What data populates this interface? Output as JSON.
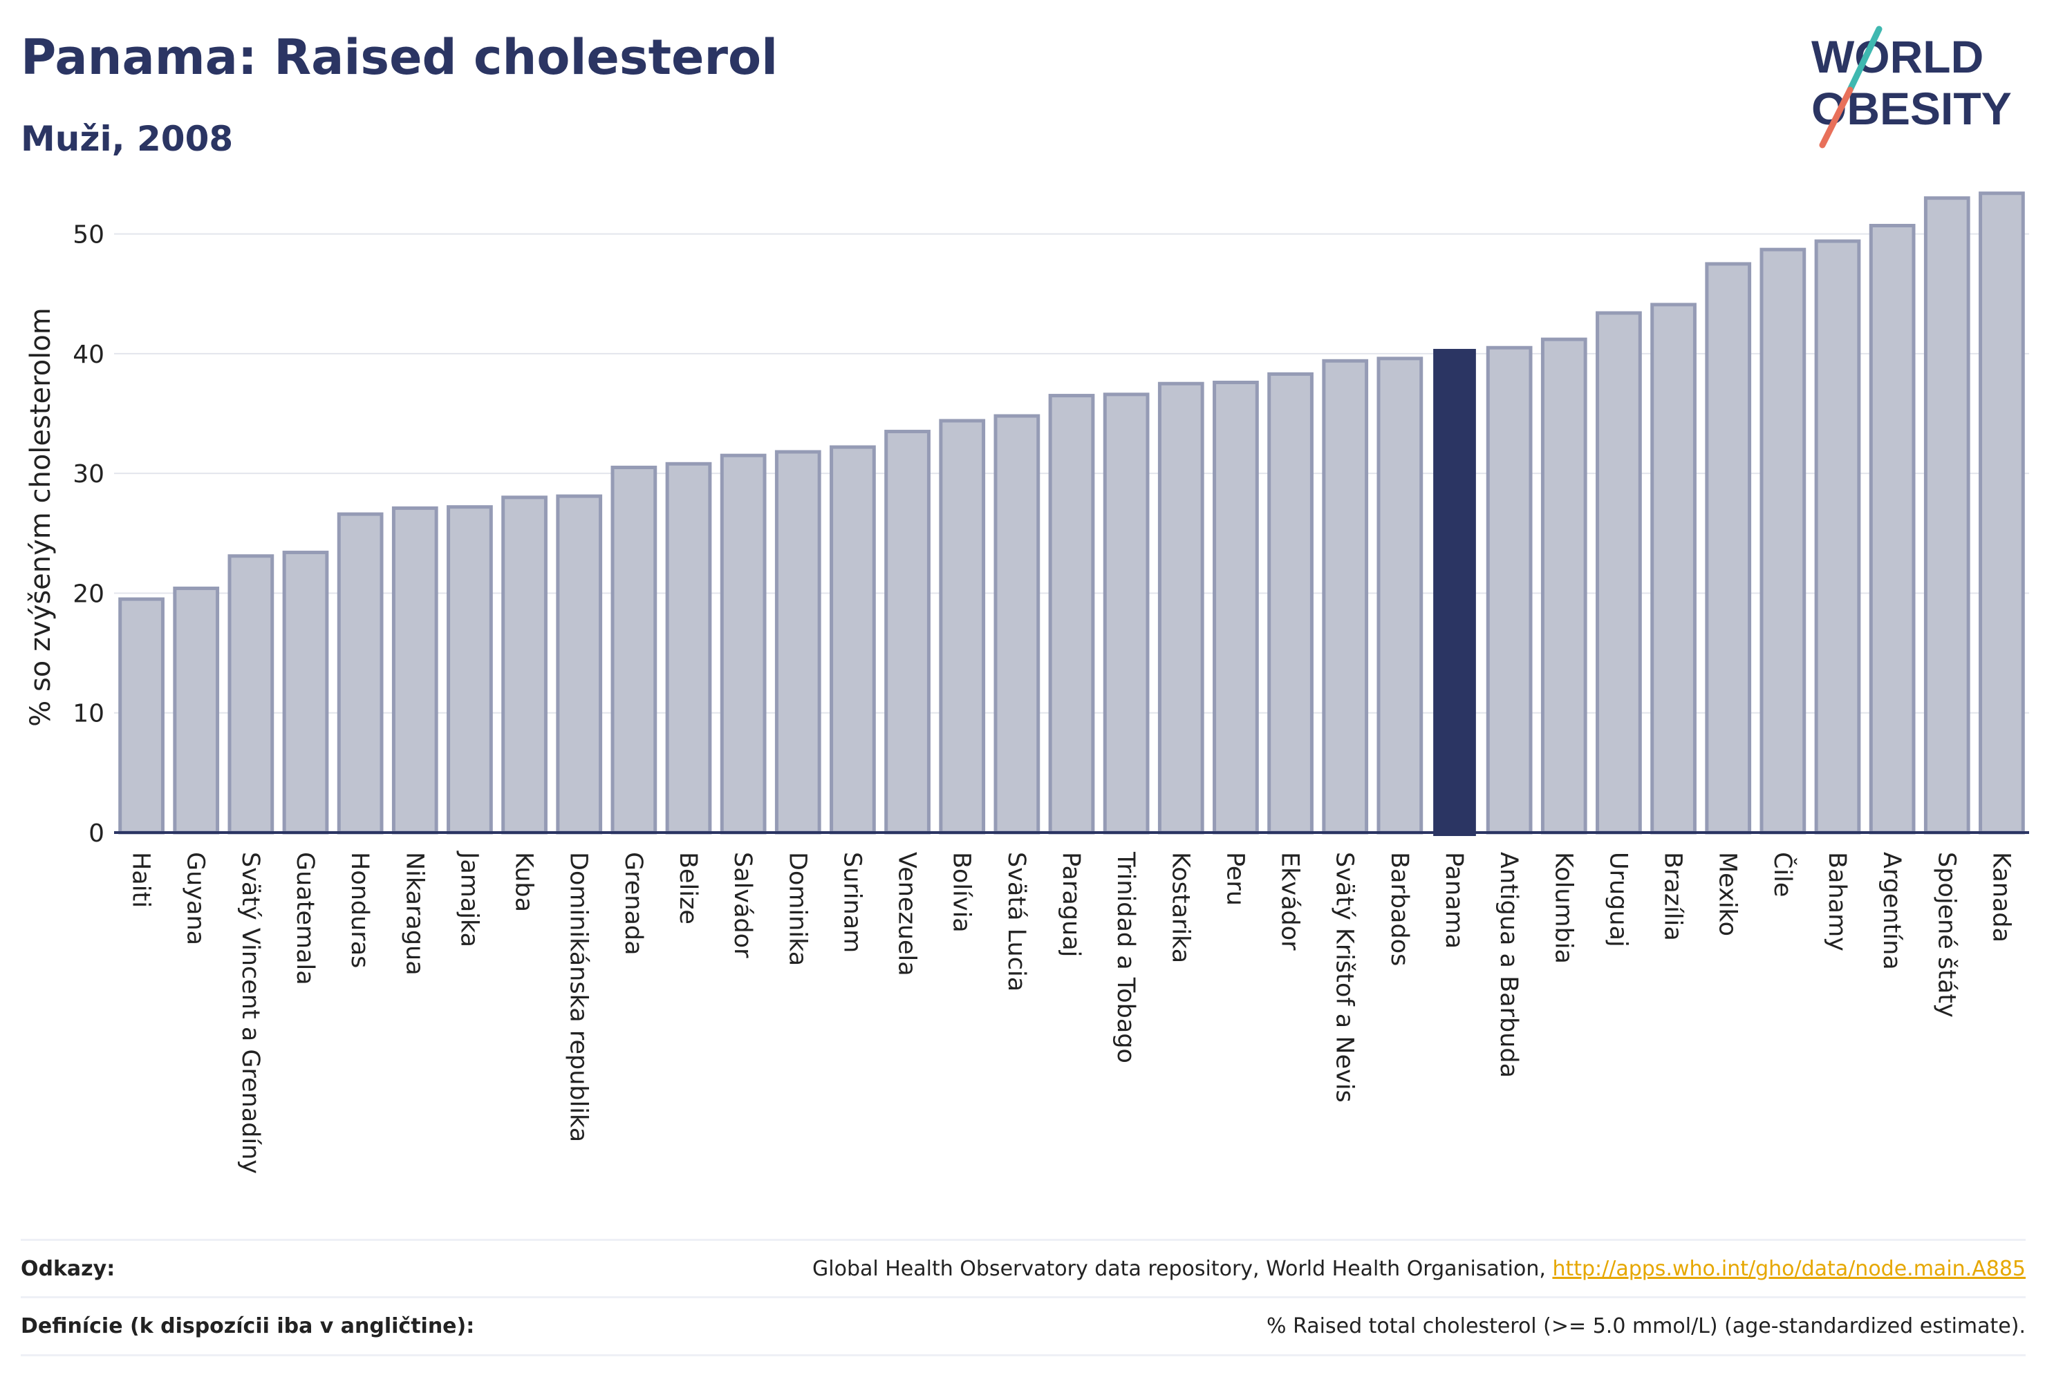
{
  "title": "Panama: Raised cholesterol",
  "subtitle": "Muži, 2008",
  "logo": {
    "line1": "WORLD",
    "line2": "OBESITY",
    "text_color": "#2b3563",
    "slash_teal": "#3fb8b0",
    "slash_coral": "#e8705a"
  },
  "colors": {
    "bar": "#bfc3d0",
    "bar_border": "#959bb5",
    "highlight": "#2b3563",
    "grid": "#e3e5ec",
    "axis": "#2b3563"
  },
  "chart_data": {
    "type": "bar",
    "ylabel": "% so zvýšeným cholesterolom",
    "ylim": [
      0,
      55
    ],
    "yticks": [
      0,
      10,
      20,
      30,
      40,
      50
    ],
    "highlight": "Panama",
    "grid": true,
    "categories": [
      "Haiti",
      "Guyana",
      "Svätý Vincent a Grenadíny",
      "Guatemala",
      "Honduras",
      "Nikaragua",
      "Jamajka",
      "Kuba",
      "Dominikánska republika",
      "Grenada",
      "Belize",
      "Salvádor",
      "Dominika",
      "Surinam",
      "Venezuela",
      "Bolívia",
      "Svätá Lucia",
      "Paraguaj",
      "Trinidad a Tobago",
      "Kostarika",
      "Peru",
      "Ekvádor",
      "Svätý Krištof a Nevis",
      "Barbados",
      "Panama",
      "Antigua a Barbuda",
      "Kolumbia",
      "Uruguaj",
      "Brazília",
      "Mexiko",
      "Čile",
      "Bahamy",
      "Argentína",
      "Spojené štáty",
      "Kanada"
    ],
    "values": [
      19.5,
      20.4,
      23.1,
      23.4,
      26.6,
      27.1,
      27.2,
      28.0,
      28.1,
      30.5,
      30.8,
      31.5,
      31.8,
      32.2,
      33.5,
      34.4,
      34.8,
      36.5,
      36.6,
      37.5,
      37.6,
      38.3,
      39.4,
      39.6,
      40.4,
      40.5,
      41.2,
      43.4,
      44.1,
      47.5,
      48.7,
      49.4,
      50.7,
      53.0,
      53.4
    ]
  },
  "footer": {
    "refs_label": "Odkazy:",
    "refs_text": "Global Health Observatory data repository, World Health Organisation, ",
    "refs_link": "http://apps.who.int/gho/data/node.main.A885",
    "defs_label": "Definície (k dispozícii iba v angličtine):",
    "defs_text": "% Raised total cholesterol (>= 5.0 mmol/L) (age-standardized estimate)."
  }
}
